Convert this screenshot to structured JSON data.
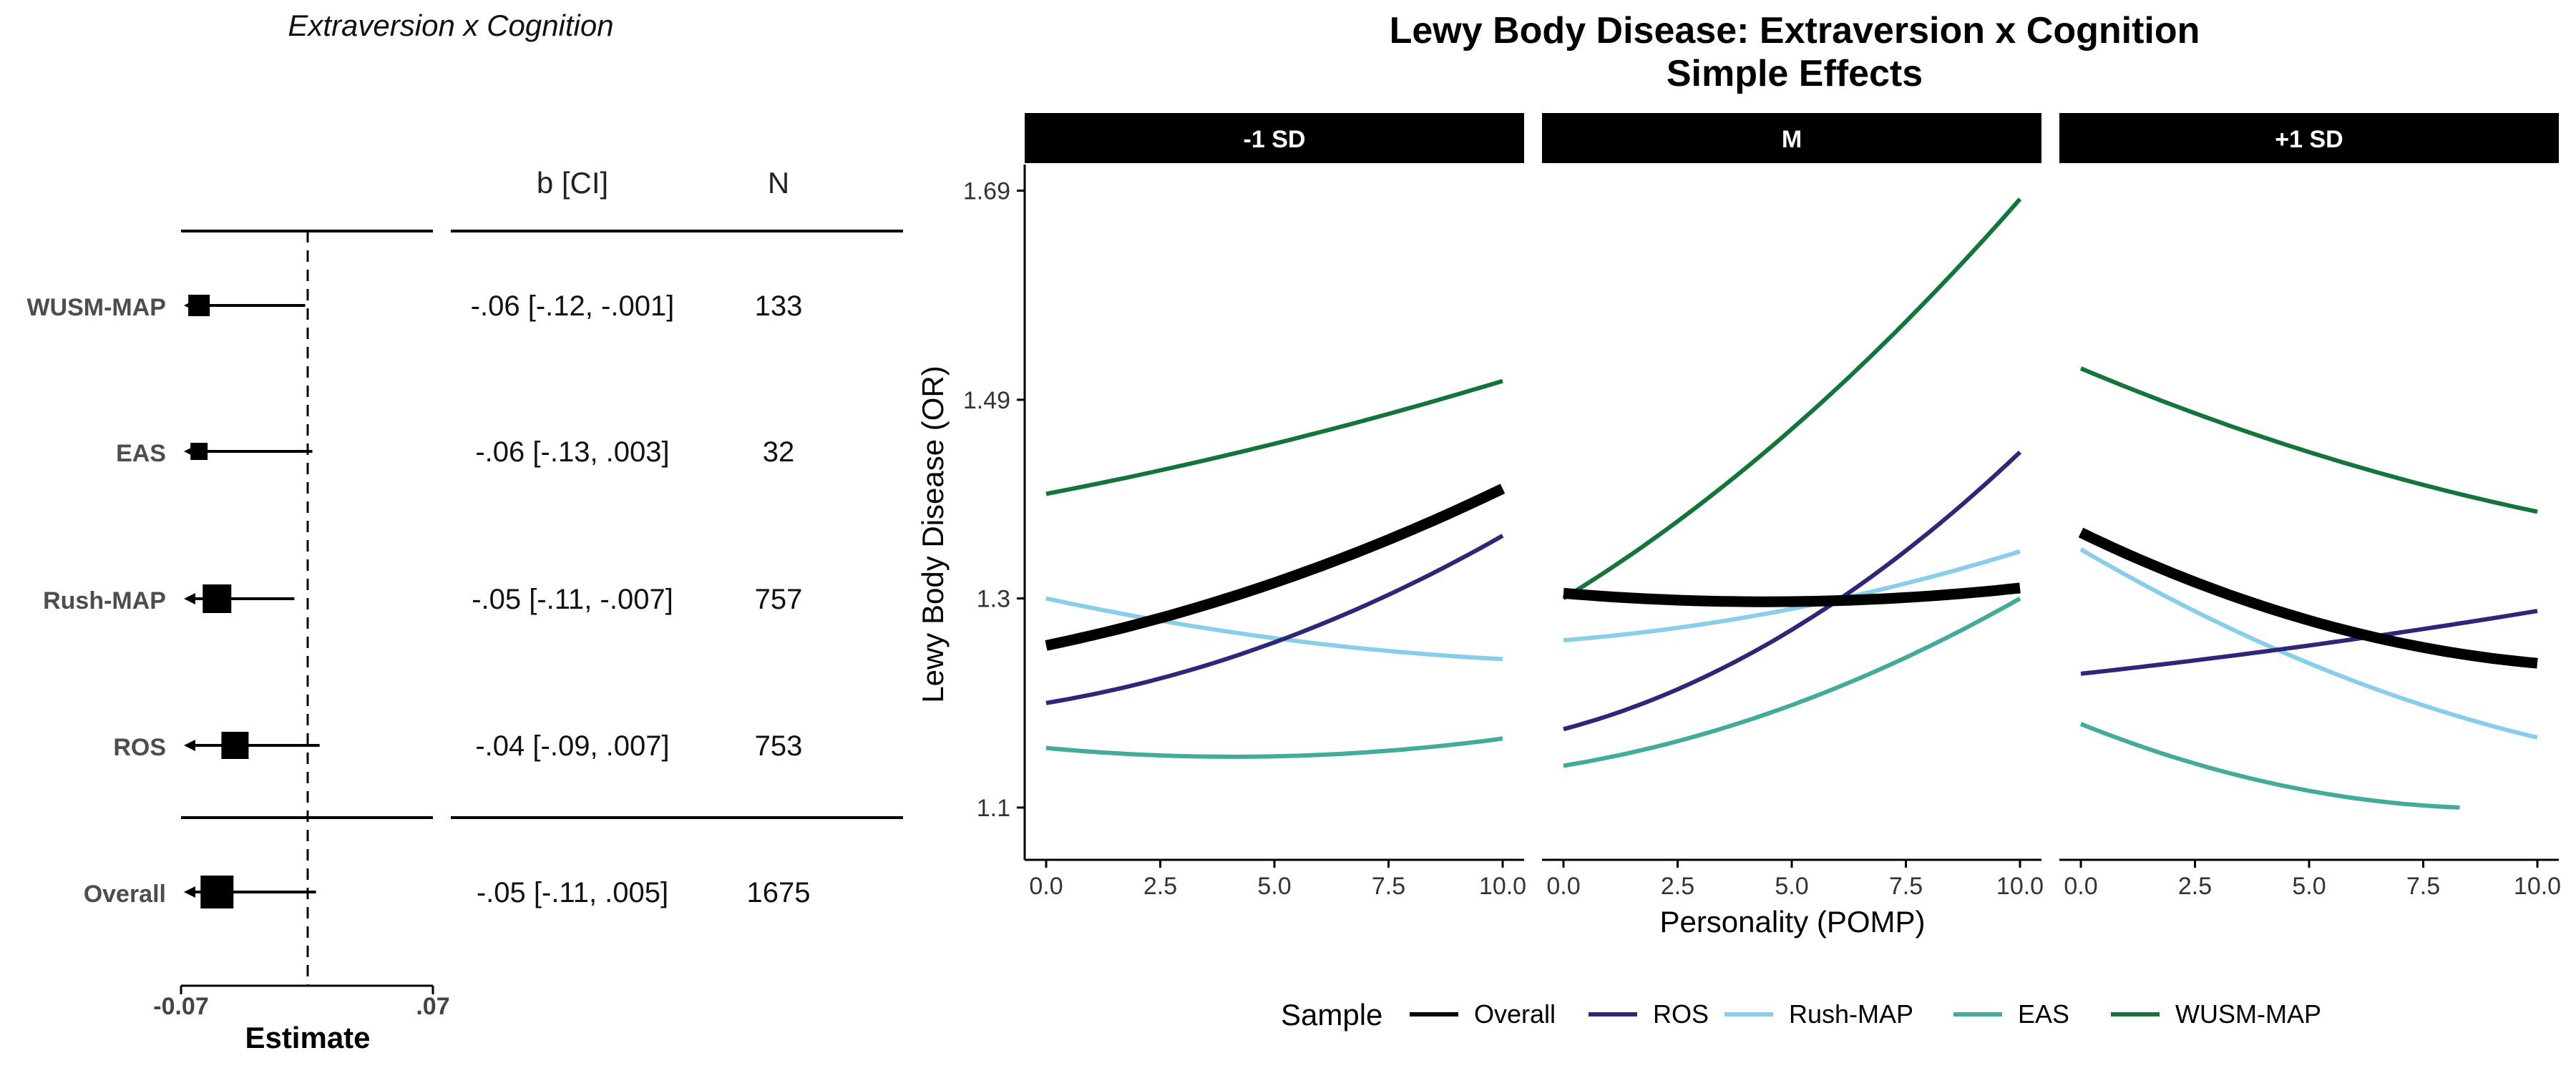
{
  "forest": {
    "title": "Extraversion x Cognition",
    "header_ci": "b [CI]",
    "header_n": "N",
    "xlabel": "Estimate",
    "ticks": [
      {
        "label": "-0.07",
        "value": -0.07
      },
      {
        "label": ".07",
        "value": 0.07
      }
    ],
    "xlim": [
      -0.07,
      0.07
    ],
    "rows": [
      {
        "label": "WUSM-MAP",
        "estimate": -0.06,
        "lower": -0.12,
        "upper": -0.001,
        "ci_text": "-.06 [-.12, -.001]",
        "n": "133"
      },
      {
        "label": "EAS",
        "estimate": -0.06,
        "lower": -0.13,
        "upper": 0.003,
        "ci_text": "-.06 [-.13, .003]",
        "n": "32"
      },
      {
        "label": "Rush-MAP",
        "estimate": -0.05,
        "lower": -0.11,
        "upper": -0.007,
        "ci_text": "-.05 [-.11, -.007]",
        "n": "757"
      },
      {
        "label": "ROS",
        "estimate": -0.04,
        "lower": -0.09,
        "upper": 0.007,
        "ci_text": "-.04 [-.09, .007]",
        "n": "753"
      },
      {
        "label": "Overall",
        "estimate": -0.05,
        "lower": -0.11,
        "upper": 0.005,
        "ci_text": "-.05 [-.11, .005]",
        "n": "1675"
      }
    ]
  },
  "chart_data": {
    "type": "line",
    "title": "Lewy Body Disease: Extraversion x Cognition",
    "subtitle": "Simple Effects",
    "xlabel": "Personality (POMP)",
    "ylabel": "Lewy Body Disease (OR)",
    "xlim": [
      0,
      10
    ],
    "ylim": [
      1.1,
      1.69
    ],
    "x_ticks": [
      "0.0",
      "2.5",
      "5.0",
      "7.5",
      "10.0"
    ],
    "y_ticks": [
      "1.1",
      "1.3",
      "1.49",
      "1.69"
    ],
    "legend_title": "Sample",
    "legend_position": "bottom",
    "series_styles": [
      {
        "name": "Overall",
        "color": "#000000"
      },
      {
        "name": "ROS",
        "color": "#2e2777"
      },
      {
        "name": "Rush-MAP",
        "color": "#88cde9"
      },
      {
        "name": "EAS",
        "color": "#44aa99"
      },
      {
        "name": "WUSM-MAP",
        "color": "#14743a"
      }
    ],
    "panels": [
      {
        "label": "-1 SD",
        "series": [
          {
            "name": "WUSM-MAP",
            "x": [
              0,
              5,
              10
            ],
            "y": [
              1.4,
              1.448,
              1.508
            ]
          },
          {
            "name": "Overall",
            "x": [
              0,
              5,
              10
            ],
            "y": [
              1.255,
              1.315,
              1.405
            ]
          },
          {
            "name": "ROS",
            "x": [
              0,
              5,
              10
            ],
            "y": [
              1.2,
              1.258,
              1.36
            ]
          },
          {
            "name": "Rush-MAP",
            "x": [
              0,
              5,
              10
            ],
            "y": [
              1.3,
              1.262,
              1.242
            ]
          },
          {
            "name": "EAS",
            "x": [
              0,
              5,
              10
            ],
            "y": [
              1.157,
              1.149,
              1.166
            ]
          }
        ]
      },
      {
        "label": "M",
        "series": [
          {
            "name": "WUSM-MAP",
            "x": [
              0,
              5,
              10
            ],
            "y": [
              1.3,
              1.462,
              1.682
            ]
          },
          {
            "name": "Overall",
            "x": [
              0,
              5,
              10
            ],
            "y": [
              1.305,
              1.297,
              1.31
            ]
          },
          {
            "name": "ROS",
            "x": [
              0,
              5,
              10
            ],
            "y": [
              1.175,
              1.27,
              1.44
            ]
          },
          {
            "name": "Rush-MAP",
            "x": [
              0,
              5,
              10
            ],
            "y": [
              1.26,
              1.29,
              1.345
            ]
          },
          {
            "name": "EAS",
            "x": [
              0,
              5,
              10
            ],
            "y": [
              1.14,
              1.198,
              1.3
            ]
          }
        ]
      },
      {
        "label": "+1 SD",
        "series": [
          {
            "name": "WUSM-MAP",
            "x": [
              0,
              5,
              10
            ],
            "y": [
              1.52,
              1.44,
              1.383
            ]
          },
          {
            "name": "Overall",
            "x": [
              0,
              5,
              10
            ],
            "y": [
              1.363,
              1.279,
              1.238
            ]
          },
          {
            "name": "ROS",
            "x": [
              0,
              5,
              10
            ],
            "y": [
              1.228,
              1.255,
              1.288
            ]
          },
          {
            "name": "Rush-MAP",
            "x": [
              0,
              5,
              10
            ],
            "y": [
              1.347,
              1.238,
              1.167
            ]
          },
          {
            "name": "EAS",
            "x": [
              0,
              4,
              8.3
            ],
            "y": [
              1.18,
              1.125,
              1.1
            ]
          }
        ]
      }
    ]
  }
}
